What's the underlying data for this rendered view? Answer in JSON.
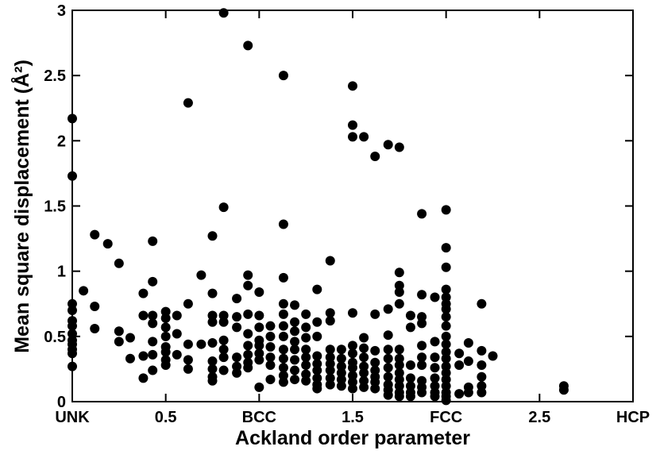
{
  "chart_data": {
    "type": "scatter",
    "x_label": "Ackland order parameter",
    "y_label": "Mean square displacement (Å²)",
    "color": "#000000",
    "xlim": [
      0,
      3
    ],
    "ylim": [
      0,
      3
    ],
    "xticks": [
      {
        "value": 0,
        "label": "UNK"
      },
      0.5,
      {
        "value": 1,
        "label": "BCC"
      },
      1.5,
      {
        "value": 2,
        "label": "FCC"
      },
      2.5,
      {
        "value": 3,
        "label": "HCP"
      }
    ],
    "yticks": [
      0,
      0.5,
      1,
      1.5,
      2,
      2.5,
      3
    ],
    "x": [
      0,
      0,
      0,
      0,
      0,
      0,
      0,
      0,
      0,
      0,
      0,
      0,
      0.06,
      0.12,
      0.12,
      0.12,
      0.19,
      0.25,
      0.25,
      0.25,
      0.31,
      0.31,
      0.38,
      0.38,
      0.38,
      0.38,
      0.43,
      0.43,
      0.43,
      0.43,
      0.43,
      0.43,
      0.43,
      0.5,
      0.5,
      0.5,
      0.5,
      0.5,
      0.5,
      0.5,
      0.5,
      0.56,
      0.56,
      0.56,
      0.62,
      0.62,
      0.62,
      0.62,
      0.62,
      0.69,
      0.69,
      0.75,
      0.75,
      0.75,
      0.75,
      0.75,
      0.75,
      0.75,
      0.75,
      0.75,
      0.81,
      0.81,
      0.81,
      0.81,
      0.81,
      0.81,
      0.81,
      0.81,
      0.88,
      0.88,
      0.88,
      0.88,
      0.88,
      0.88,
      0.94,
      0.94,
      0.94,
      0.94,
      0.94,
      0.94,
      0.94,
      0.94,
      0.94,
      1.0,
      1.0,
      1.0,
      1.0,
      1.0,
      1.0,
      1.0,
      1.0,
      1.06,
      1.06,
      1.06,
      1.06,
      1.06,
      1.06,
      1.13,
      1.13,
      1.13,
      1.13,
      1.13,
      1.13,
      1.13,
      1.13,
      1.13,
      1.13,
      1.13,
      1.13,
      1.19,
      1.19,
      1.19,
      1.19,
      1.19,
      1.19,
      1.19,
      1.19,
      1.25,
      1.25,
      1.25,
      1.25,
      1.25,
      1.25,
      1.25,
      1.25,
      1.31,
      1.31,
      1.31,
      1.31,
      1.31,
      1.31,
      1.31,
      1.31,
      1.31,
      1.38,
      1.38,
      1.38,
      1.38,
      1.38,
      1.38,
      1.38,
      1.38,
      1.38,
      1.44,
      1.44,
      1.44,
      1.44,
      1.44,
      1.44,
      1.5,
      1.5,
      1.5,
      1.5,
      1.5,
      1.5,
      1.5,
      1.5,
      1.5,
      1.5,
      1.5,
      1.56,
      1.56,
      1.56,
      1.56,
      1.56,
      1.56,
      1.56,
      1.56,
      1.62,
      1.62,
      1.62,
      1.62,
      1.62,
      1.62,
      1.62,
      1.62,
      1.69,
      1.69,
      1.69,
      1.69,
      1.69,
      1.69,
      1.69,
      1.69,
      1.69,
      1.69,
      1.75,
      1.75,
      1.75,
      1.75,
      1.75,
      1.75,
      1.75,
      1.75,
      1.75,
      1.75,
      1.75,
      1.75,
      1.75,
      1.81,
      1.81,
      1.81,
      1.81,
      1.81,
      1.81,
      1.81,
      1.87,
      1.87,
      1.87,
      1.87,
      1.87,
      1.87,
      1.87,
      1.87,
      1.87,
      1.87,
      1.94,
      1.94,
      1.94,
      1.94,
      1.94,
      1.94,
      1.94,
      1.94,
      2.0,
      2.0,
      2.0,
      2.0,
      2.0,
      2.0,
      2.0,
      2.0,
      2.0,
      2.0,
      2.0,
      2.0,
      2.0,
      2.0,
      2.0,
      2.0,
      2.0,
      2.0,
      2.0,
      2.0,
      2.07,
      2.07,
      2.07,
      2.12,
      2.12,
      2.12,
      2.12,
      2.19,
      2.19,
      2.19,
      2.19,
      2.19,
      2.19,
      2.25,
      2.63,
      2.63
    ],
    "y": [
      2.17,
      1.73,
      0.75,
      0.7,
      0.62,
      0.58,
      0.52,
      0.47,
      0.44,
      0.4,
      0.37,
      0.27,
      0.85,
      1.28,
      0.73,
      0.56,
      1.21,
      1.06,
      0.54,
      0.46,
      0.49,
      0.33,
      0.83,
      0.66,
      0.35,
      0.18,
      1.23,
      0.92,
      0.66,
      0.6,
      0.46,
      0.36,
      0.24,
      0.69,
      0.64,
      0.57,
      0.5,
      0.42,
      0.38,
      0.32,
      0.28,
      0.66,
      0.52,
      0.36,
      2.29,
      0.75,
      0.44,
      0.32,
      0.25,
      0.97,
      0.44,
      1.27,
      0.83,
      0.66,
      0.61,
      0.45,
      0.31,
      0.25,
      0.19,
      0.16,
      2.98,
      1.49,
      0.66,
      0.61,
      0.47,
      0.4,
      0.34,
      0.24,
      0.79,
      0.65,
      0.57,
      0.34,
      0.27,
      0.22,
      2.73,
      0.97,
      0.89,
      0.67,
      0.52,
      0.43,
      0.36,
      0.3,
      0.26,
      0.84,
      0.66,
      0.57,
      0.47,
      0.43,
      0.37,
      0.32,
      0.11,
      0.58,
      0.5,
      0.42,
      0.34,
      0.28,
      0.17,
      2.5,
      1.36,
      0.95,
      0.75,
      0.67,
      0.58,
      0.5,
      0.4,
      0.33,
      0.26,
      0.2,
      0.15,
      0.74,
      0.61,
      0.54,
      0.46,
      0.4,
      0.32,
      0.24,
      0.17,
      0.67,
      0.57,
      0.49,
      0.4,
      0.34,
      0.28,
      0.21,
      0.16,
      0.86,
      0.61,
      0.5,
      0.35,
      0.29,
      0.24,
      0.18,
      0.13,
      0.1,
      1.08,
      0.68,
      0.62,
      0.4,
      0.34,
      0.29,
      0.24,
      0.18,
      0.13,
      0.4,
      0.33,
      0.27,
      0.22,
      0.17,
      0.12,
      2.42,
      2.12,
      2.03,
      0.68,
      0.43,
      0.37,
      0.3,
      0.26,
      0.2,
      0.15,
      0.1,
      2.03,
      0.49,
      0.41,
      0.34,
      0.27,
      0.22,
      0.16,
      0.11,
      1.88,
      0.67,
      0.39,
      0.3,
      0.24,
      0.19,
      0.15,
      0.1,
      1.97,
      0.71,
      0.51,
      0.4,
      0.33,
      0.26,
      0.19,
      0.13,
      0.09,
      0.05,
      1.95,
      0.99,
      0.89,
      0.84,
      0.75,
      0.4,
      0.33,
      0.28,
      0.22,
      0.17,
      0.12,
      0.07,
      0.04,
      0.66,
      0.57,
      0.28,
      0.18,
      0.12,
      0.07,
      0.04,
      1.44,
      0.82,
      0.65,
      0.6,
      0.43,
      0.34,
      0.28,
      0.16,
      0.11,
      0.07,
      0.8,
      0.46,
      0.34,
      0.26,
      0.18,
      0.12,
      0.07,
      0.04,
      1.47,
      1.18,
      1.03,
      0.86,
      0.8,
      0.75,
      0.71,
      0.65,
      0.58,
      0.5,
      0.44,
      0.38,
      0.33,
      0.27,
      0.22,
      0.17,
      0.12,
      0.07,
      0.04,
      0.01,
      0.37,
      0.28,
      0.06,
      0.45,
      0.31,
      0.11,
      0.07,
      0.75,
      0.39,
      0.28,
      0.19,
      0.12,
      0.07,
      0.35,
      0.12,
      0.09
    ]
  }
}
